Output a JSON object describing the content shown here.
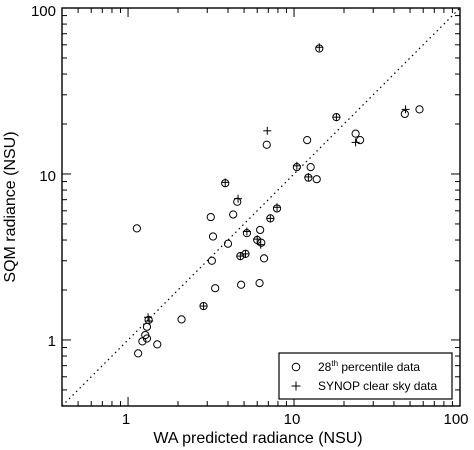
{
  "chart_data": {
    "type": "scatter",
    "title": "",
    "xlabel": "WA predicted radiance (NSU)",
    "ylabel": "SQM radiance (NSU)",
    "xscale": "log",
    "yscale": "log",
    "xlim": [
      0.4,
      100
    ],
    "ylim": [
      0.4,
      100
    ],
    "x_ticks": [
      {
        "value": 1,
        "label": "1"
      },
      {
        "value": 10,
        "label": "10"
      },
      {
        "value": 100,
        "label": "100"
      }
    ],
    "y_ticks": [
      {
        "value": 1,
        "label": "1"
      },
      {
        "value": 10,
        "label": "10"
      },
      {
        "value": 100,
        "label": "100"
      }
    ],
    "grid": false,
    "reference_line": "y = x (dotted)",
    "legend": {
      "placement": "bottom-right",
      "entries": [
        {
          "marker": "circle",
          "label_main": "28",
          "label_sup": "th",
          "label_rest": " percentile data"
        },
        {
          "marker": "plus",
          "label": "SYNOP clear sky data"
        }
      ]
    },
    "series": [
      {
        "name": "28th percentile data",
        "marker": "circle",
        "points": [
          {
            "x": 1.13,
            "y": 4.7
          },
          {
            "x": 1.15,
            "y": 0.83
          },
          {
            "x": 1.22,
            "y": 0.98
          },
          {
            "x": 1.27,
            "y": 1.07
          },
          {
            "x": 1.3,
            "y": 1.2
          },
          {
            "x": 1.3,
            "y": 1.02
          },
          {
            "x": 1.33,
            "y": 1.32
          },
          {
            "x": 1.5,
            "y": 0.94
          },
          {
            "x": 2.1,
            "y": 1.33
          },
          {
            "x": 2.85,
            "y": 1.6
          },
          {
            "x": 3.15,
            "y": 5.5
          },
          {
            "x": 3.2,
            "y": 3.0
          },
          {
            "x": 3.25,
            "y": 4.2
          },
          {
            "x": 3.35,
            "y": 2.05
          },
          {
            "x": 3.85,
            "y": 8.8
          },
          {
            "x": 4.0,
            "y": 3.8
          },
          {
            "x": 4.3,
            "y": 5.7
          },
          {
            "x": 4.55,
            "y": 6.8
          },
          {
            "x": 4.75,
            "y": 3.2
          },
          {
            "x": 4.8,
            "y": 2.15
          },
          {
            "x": 5.1,
            "y": 3.3
          },
          {
            "x": 5.2,
            "y": 4.4
          },
          {
            "x": 6.0,
            "y": 4.0
          },
          {
            "x": 6.2,
            "y": 2.2
          },
          {
            "x": 6.25,
            "y": 4.6
          },
          {
            "x": 6.35,
            "y": 3.85
          },
          {
            "x": 6.6,
            "y": 3.1
          },
          {
            "x": 6.85,
            "y": 15.0
          },
          {
            "x": 7.2,
            "y": 5.4
          },
          {
            "x": 7.9,
            "y": 6.2
          },
          {
            "x": 10.4,
            "y": 11.0
          },
          {
            "x": 12.0,
            "y": 16.0
          },
          {
            "x": 12.2,
            "y": 9.5
          },
          {
            "x": 12.6,
            "y": 11.0
          },
          {
            "x": 13.7,
            "y": 9.3
          },
          {
            "x": 14.2,
            "y": 57.0
          },
          {
            "x": 18.0,
            "y": 22.0
          },
          {
            "x": 23.5,
            "y": 17.5
          },
          {
            "x": 25.0,
            "y": 16.0
          },
          {
            "x": 46.5,
            "y": 23.0
          },
          {
            "x": 57.0,
            "y": 24.5
          }
        ]
      },
      {
        "name": "SYNOP clear sky data",
        "marker": "plus",
        "points": [
          {
            "x": 1.32,
            "y": 1.37
          },
          {
            "x": 1.34,
            "y": 1.3
          },
          {
            "x": 2.85,
            "y": 1.6
          },
          {
            "x": 3.85,
            "y": 8.9
          },
          {
            "x": 4.6,
            "y": 7.1
          },
          {
            "x": 4.75,
            "y": 3.2
          },
          {
            "x": 5.1,
            "y": 3.3
          },
          {
            "x": 5.2,
            "y": 4.5
          },
          {
            "x": 6.0,
            "y": 4.05
          },
          {
            "x": 6.3,
            "y": 3.75
          },
          {
            "x": 6.9,
            "y": 18.2
          },
          {
            "x": 7.2,
            "y": 5.4
          },
          {
            "x": 7.9,
            "y": 6.3
          },
          {
            "x": 10.4,
            "y": 11.2
          },
          {
            "x": 12.2,
            "y": 9.6
          },
          {
            "x": 14.2,
            "y": 58.0
          },
          {
            "x": 18.0,
            "y": 22.0
          },
          {
            "x": 23.5,
            "y": 15.5
          },
          {
            "x": 47.0,
            "y": 24.5
          }
        ]
      }
    ]
  }
}
